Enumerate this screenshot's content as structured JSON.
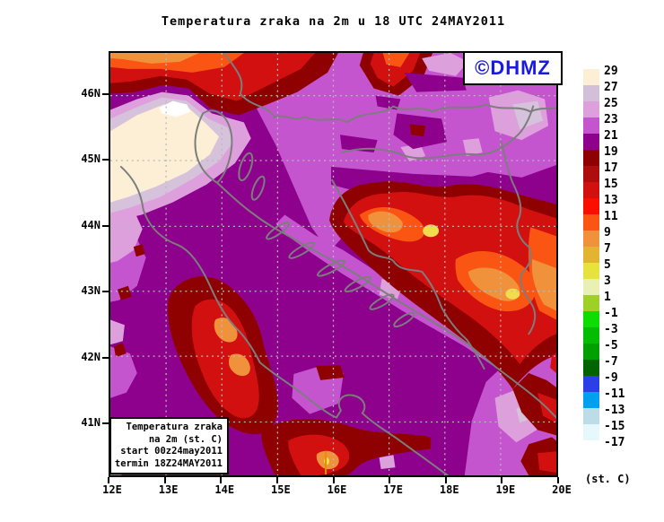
{
  "title": "Temperatura zraka na 2m u 18 UTC 24MAY2011",
  "logo": {
    "text": "©DHMZ",
    "color": "#1a1ae0"
  },
  "info_box": {
    "line1": "Temperatura zraka",
    "line2": "na 2m (st. C)",
    "line3": "start 00z24may2011",
    "line4": "termin 18Z24MAY2011"
  },
  "axes": {
    "lat_labels": [
      "46N",
      "45N",
      "44N",
      "43N",
      "42N",
      "41N"
    ],
    "lon_labels": [
      "12E",
      "13E",
      "14E",
      "15E",
      "16E",
      "17E",
      "18E",
      "19E",
      "20E"
    ]
  },
  "legend": {
    "unit_label": "(st. C)",
    "entries": [
      {
        "label": "29",
        "color": "#fcefd6"
      },
      {
        "label": "27",
        "color": "#d2bfd8"
      },
      {
        "label": "25",
        "color": "#dda0dd"
      },
      {
        "label": "23",
        "color": "#c455cf"
      },
      {
        "label": "21",
        "color": "#8d018d"
      },
      {
        "label": "19",
        "color": "#8f0000"
      },
      {
        "label": "17",
        "color": "#ad0d0d"
      },
      {
        "label": "15",
        "color": "#d21010"
      },
      {
        "label": "13",
        "color": "#fb0f00"
      },
      {
        "label": "11",
        "color": "#fa5512"
      },
      {
        "label": "9",
        "color": "#f0923c"
      },
      {
        "label": "7",
        "color": "#e2b432"
      },
      {
        "label": "5",
        "color": "#e8e23c"
      },
      {
        "label": "3",
        "color": "#eaf0b4"
      },
      {
        "label": "1",
        "color": "#9fd028"
      },
      {
        "label": "-1",
        "color": "#0ddc05"
      },
      {
        "label": "-3",
        "color": "#04bc04"
      },
      {
        "label": "-5",
        "color": "#00a000"
      },
      {
        "label": "-7",
        "color": "#016401"
      },
      {
        "label": "-9",
        "color": "#2a3fe6"
      },
      {
        "label": "-11",
        "color": "#00a0f0"
      },
      {
        "label": "-13",
        "color": "#bcdce8"
      },
      {
        "label": "-15",
        "color": "#e6f8fc"
      },
      {
        "label": "-17",
        "color": null
      }
    ]
  },
  "map_colors": {
    "sea_and_19_21": "#8d018d",
    "21_23": "#c455cf",
    "23_25": "#dda0dd",
    "25_27": "#d6c2da",
    "27_29": "#fcefd6",
    "borders": "#7d7d7d"
  }
}
